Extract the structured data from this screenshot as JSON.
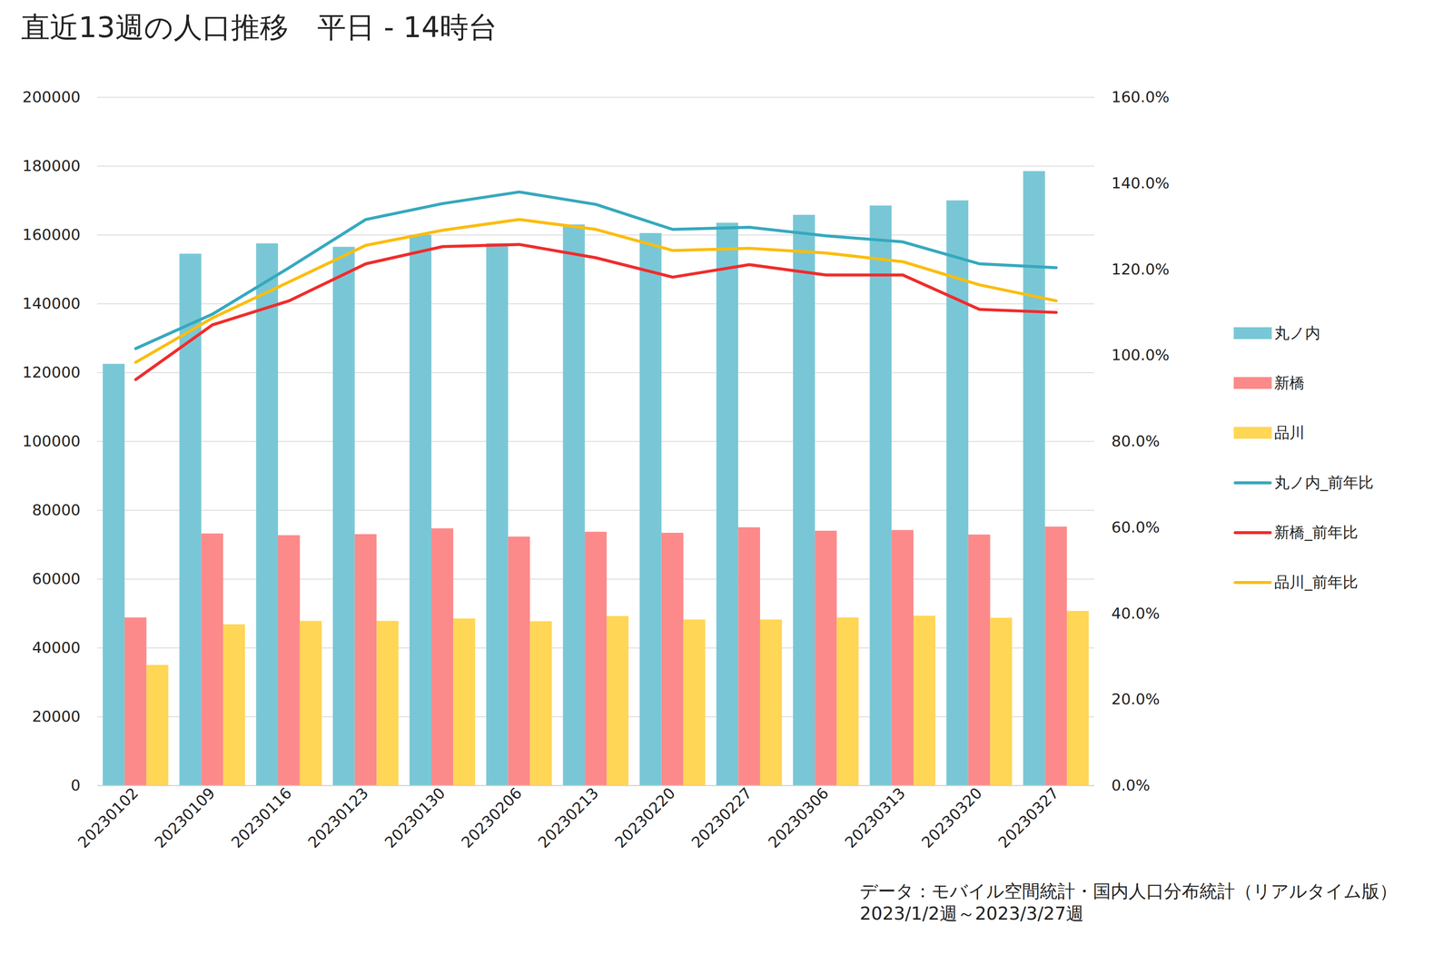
{
  "chart_data": {
    "type": "bar",
    "title": "直近13週の人口推移　平日 - 14時台",
    "caption": [
      "データ：モバイル空間統計・国内人口分布統計（リアルタイム版）",
      "2023/1/2週～2023/3/27週"
    ],
    "categories": [
      "20230102",
      "20230109",
      "20230116",
      "20230123",
      "20230130",
      "20230206",
      "20230213",
      "20230220",
      "20230227",
      "20230306",
      "20230313",
      "20230320",
      "20230327"
    ],
    "series": [
      {
        "name": "丸ノ内",
        "type": "bar",
        "color": "#79c7d6",
        "values": [
          122500,
          154500,
          157500,
          156500,
          160000,
          157500,
          163000,
          160500,
          163500,
          165800,
          168500,
          170000,
          178500
        ]
      },
      {
        "name": "新橋",
        "type": "bar",
        "color": "#fc8a8a",
        "values": [
          48800,
          73200,
          72700,
          73000,
          74700,
          72300,
          73700,
          73400,
          75000,
          74000,
          74200,
          72900,
          75200
        ]
      },
      {
        "name": "品川",
        "type": "bar",
        "color": "#ffd655",
        "values": [
          35000,
          46800,
          47800,
          47800,
          48500,
          47700,
          49200,
          48200,
          48200,
          48800,
          49300,
          48700,
          50700
        ]
      },
      {
        "name": "丸ノ内_前年比",
        "type": "line",
        "axis": "y2",
        "color": "#36a9bd",
        "values": [
          101.6,
          109.6,
          120.4,
          131.6,
          135.3,
          138.0,
          135.1,
          129.3,
          129.8,
          127.8,
          126.4,
          121.3,
          120.4
        ]
      },
      {
        "name": "新橋_前年比",
        "type": "line",
        "axis": "y2",
        "color": "#f02c2c",
        "values": [
          94.4,
          107.1,
          112.7,
          121.3,
          125.3,
          125.8,
          122.7,
          118.2,
          121.1,
          118.7,
          118.7,
          110.7,
          110.0
        ]
      },
      {
        "name": "品川_前年比",
        "type": "line",
        "axis": "y2",
        "color": "#fbbd0e",
        "values": [
          98.4,
          108.7,
          117.1,
          125.6,
          129.1,
          131.6,
          129.3,
          124.4,
          124.9,
          123.8,
          121.8,
          116.4,
          112.7
        ]
      }
    ],
    "ylim": [
      0,
      200000
    ],
    "yticks": [
      0,
      20000,
      40000,
      60000,
      80000,
      100000,
      120000,
      140000,
      160000,
      180000,
      200000
    ],
    "y2lim": [
      0,
      160
    ],
    "y2ticks": [
      {
        "value": 0,
        "label": "0.0%"
      },
      {
        "value": 20,
        "label": "20.0%"
      },
      {
        "value": 40,
        "label": "40.0%"
      },
      {
        "value": 60,
        "label": "60.0%"
      },
      {
        "value": 80,
        "label": "80.0%"
      },
      {
        "value": 100,
        "label": "100.0%"
      },
      {
        "value": 120,
        "label": "120.0%"
      },
      {
        "value": 140,
        "label": "140.0%"
      },
      {
        "value": 160,
        "label": "160.0%"
      }
    ],
    "grid": true,
    "legend": "right"
  }
}
